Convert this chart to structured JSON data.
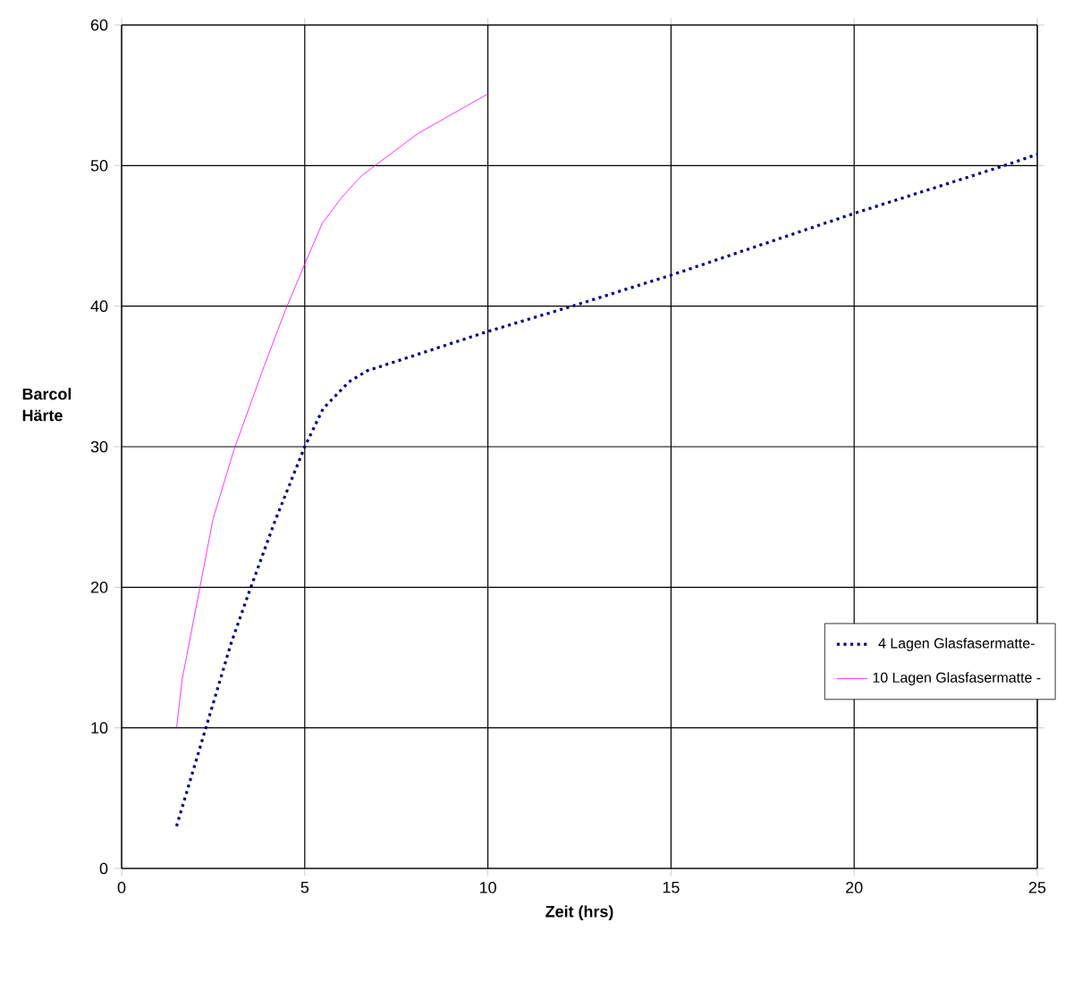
{
  "chart_data": {
    "type": "line",
    "xlabel": "Zeit (hrs)",
    "ylabel": "Barcol Härte",
    "xlim": [
      0,
      25
    ],
    "ylim": [
      0,
      60
    ],
    "xticks": [
      0,
      5,
      10,
      15,
      20,
      25
    ],
    "yticks": [
      0,
      10,
      20,
      30,
      40,
      50,
      60
    ],
    "grid": true,
    "legend": "bottom right",
    "marker": "none",
    "series": [
      {
        "name": "4 Lagen Glasfasermatte-",
        "color": "#000080",
        "line_style": "dotted",
        "x": [
          1.5,
          2.3,
          3.0,
          3.5,
          4.2,
          5.0,
          5.5,
          6.2,
          6.7,
          8.0,
          10.0,
          12.3,
          15.0,
          20.0,
          24.1,
          25.0
        ],
        "values": [
          3.0,
          10.0,
          16.1,
          19.8,
          24.8,
          30.0,
          32.7,
          34.6,
          35.4,
          36.5,
          38.2,
          40.0,
          42.2,
          46.6,
          50.0,
          50.8
        ]
      },
      {
        "name": "10 Lagen Glasfasermatte -",
        "color": "#ff00ff",
        "line_style": "solid",
        "x": [
          1.5,
          1.65,
          2.5,
          3.07,
          3.9,
          4.47,
          5.0,
          5.48,
          6.03,
          6.56,
          6.97,
          8.1,
          10.0
        ],
        "values": [
          10.0,
          13.4,
          24.9,
          29.8,
          35.8,
          39.7,
          43.0,
          45.9,
          47.8,
          49.3,
          50.1,
          52.3,
          55.1
        ]
      }
    ]
  }
}
